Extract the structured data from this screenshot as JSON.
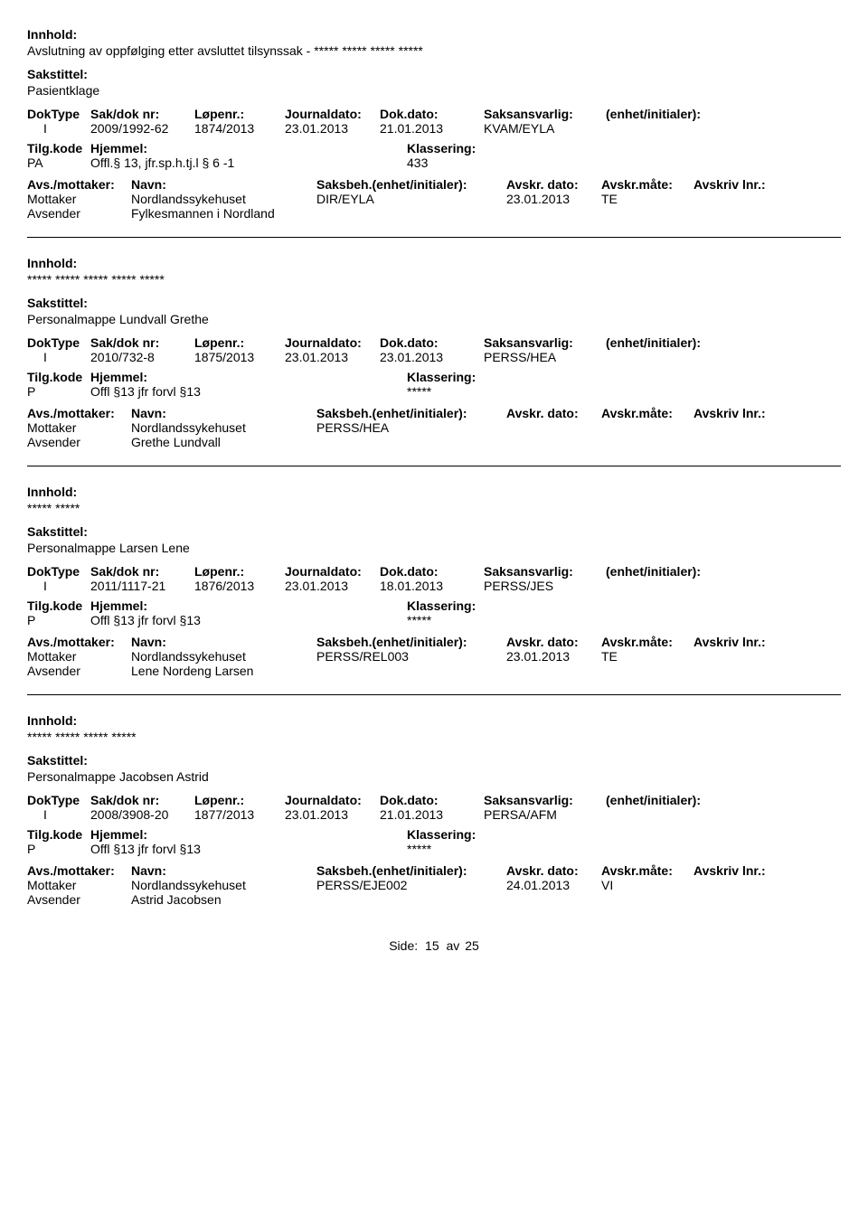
{
  "labels": {
    "innhold": "Innhold:",
    "sakstittel": "Sakstittel:",
    "doktype": "DokType",
    "saknr": "Sak/dok nr:",
    "lopenr": "Løpenr.:",
    "journaldato": "Journaldato:",
    "dokdato": "Dok.dato:",
    "saksansvarlig": "Saksansvarlig:",
    "enhet": "(enhet/initialer):",
    "tilgkode": "Tilg.kode",
    "hjemmel": "Hjemmel:",
    "klassering": "Klassering:",
    "avsmottaker": "Avs./mottaker:",
    "navn": "Navn:",
    "saksbeh": "Saksbeh.(enhet/initialer):",
    "avskrdato": "Avskr. dato:",
    "avskrmate": "Avskr.måte:",
    "avskrivlnr": "Avskriv lnr.:",
    "mottaker": "Mottaker",
    "avsender": "Avsender"
  },
  "records": [
    {
      "innhold": "Avslutning av oppfølging etter avsluttet tilsynssak - ***** ***** ***** *****",
      "sakstittel": "Pasientklage",
      "doktype": "I",
      "saknr": "2009/1992-62",
      "lopenr": "1874/2013",
      "journaldato": "23.01.2013",
      "dokdato": "21.01.2013",
      "saksansvarlig": "KVAM/EYLA",
      "tilgkode": "PA",
      "hjemmel": "Offl.§ 13, jfr.sp.h.tj.l § 6 -1",
      "klassering": "433",
      "mottaker_navn": "Nordlandssykehuset",
      "mottaker_saksbeh": "DIR/EYLA",
      "mottaker_avdato": "23.01.2013",
      "mottaker_avmate": "TE",
      "avsender_navn": "Fylkesmannen i Nordland"
    },
    {
      "innhold": "***** ***** ***** ***** *****",
      "sakstittel": "Personalmappe Lundvall Grethe",
      "doktype": "I",
      "saknr": "2010/732-8",
      "lopenr": "1875/2013",
      "journaldato": "23.01.2013",
      "dokdato": "23.01.2013",
      "saksansvarlig": "PERSS/HEA",
      "tilgkode": "P",
      "hjemmel": "Offl §13 jfr forvl §13",
      "klassering": "*****",
      "mottaker_navn": "Nordlandssykehuset",
      "mottaker_saksbeh": "PERSS/HEA",
      "mottaker_avdato": "",
      "mottaker_avmate": "",
      "avsender_navn": "Grethe Lundvall"
    },
    {
      "innhold": "***** *****",
      "sakstittel": "Personalmappe Larsen Lene",
      "doktype": "I",
      "saknr": "2011/1117-21",
      "lopenr": "1876/2013",
      "journaldato": "23.01.2013",
      "dokdato": "18.01.2013",
      "saksansvarlig": "PERSS/JES",
      "tilgkode": "P",
      "hjemmel": "Offl §13 jfr forvl §13",
      "klassering": "*****",
      "mottaker_navn": "Nordlandssykehuset",
      "mottaker_saksbeh": "PERSS/REL003",
      "mottaker_avdato": "23.01.2013",
      "mottaker_avmate": "TE",
      "avsender_navn": "Lene Nordeng Larsen"
    },
    {
      "innhold": "***** ***** ***** *****",
      "sakstittel": "Personalmappe Jacobsen Astrid",
      "doktype": "I",
      "saknr": "2008/3908-20",
      "lopenr": "1877/2013",
      "journaldato": "23.01.2013",
      "dokdato": "21.01.2013",
      "saksansvarlig": "PERSA/AFM",
      "tilgkode": "P",
      "hjemmel": "Offl §13 jfr forvl §13",
      "klassering": "*****",
      "mottaker_navn": "Nordlandssykehuset",
      "mottaker_saksbeh": "PERSS/EJE002",
      "mottaker_avdato": "24.01.2013",
      "mottaker_avmate": "VI",
      "avsender_navn": "Astrid Jacobsen"
    }
  ],
  "footer": {
    "side": "Side:",
    "page": "15",
    "av": "av",
    "total": "25"
  }
}
